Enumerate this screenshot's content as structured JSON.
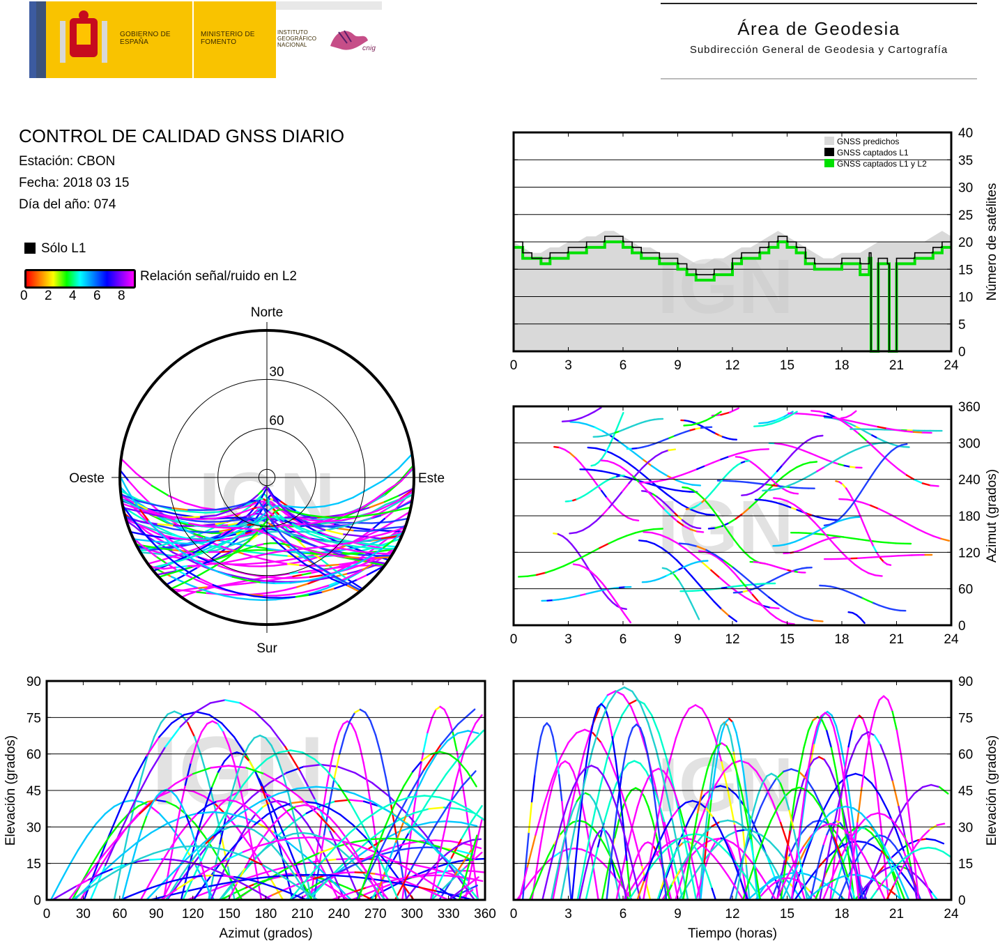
{
  "header": {
    "gov_label": "GOBIERNO DE ESPAÑA",
    "ministry_label": "MINISTERIO DE FOMENTO",
    "institute_label": "INSTITUTO GEOGRÁFICO NACIONAL",
    "cnig_label": "cnig",
    "area_title": "Área de Geodesia",
    "area_subtitle": "Subdirección General de Geodesia y Cartografía"
  },
  "info": {
    "title": "CONTROL DE CALIDAD GNSS DIARIO",
    "station": "Estación: CBON",
    "date": "Fecha: 2018 03 15",
    "doy": "Día del año: 074"
  },
  "legend": {
    "only_l1": "Sólo L1",
    "snr_label": "Relación señal/ruido en L2",
    "snr_ticks": [
      "0",
      "2",
      "4",
      "6",
      "8"
    ],
    "colors": {
      "only_l1": "#000000",
      "snr_gradient": [
        "#ff0000",
        "#ff8000",
        "#ffff00",
        "#00ff00",
        "#00ffff",
        "#0000ff",
        "#ff00ff"
      ]
    }
  },
  "watermark": "IGN",
  "chart_data": [
    {
      "id": "skyplot",
      "type": "scatter",
      "cardinal": {
        "north": "Norte",
        "south": "Sur",
        "east": "Este",
        "west": "Oeste"
      },
      "elevation_ticks": [
        "30",
        "60"
      ],
      "description_values": {
        "elevation_rings_deg": [
          30,
          60
        ],
        "max_elevation_deg": 90
      }
    },
    {
      "id": "satellite-count",
      "type": "line",
      "ylabel": "Número de satélites",
      "xlim": [
        0,
        24
      ],
      "ylim": [
        0,
        40
      ],
      "x_ticks": [
        "0",
        "3",
        "6",
        "9",
        "12",
        "15",
        "18",
        "21",
        "24"
      ],
      "y_ticks": [
        "0",
        "5",
        "10",
        "15",
        "20",
        "25",
        "30",
        "35",
        "40"
      ],
      "legend_position": "top-right",
      "series": [
        {
          "name": "GNSS predichos",
          "color": "#d9d9d9",
          "x": [
            0,
            0.5,
            1,
            1.5,
            2,
            2.5,
            3,
            3.5,
            4,
            4.5,
            5,
            5.5,
            6,
            6.5,
            7,
            7.5,
            8,
            8.5,
            9,
            9.5,
            10,
            10.5,
            11,
            11.5,
            12,
            12.5,
            13,
            13.5,
            14,
            14.5,
            15,
            15.5,
            16,
            16.5,
            17,
            17.5,
            18,
            18.5,
            19,
            19.5,
            20,
            20.5,
            21,
            21.5,
            22,
            22.5,
            23,
            23.5,
            24
          ],
          "values": [
            20,
            19,
            18,
            18,
            19,
            19,
            20,
            20,
            21,
            21,
            22,
            22,
            21,
            20,
            19,
            19,
            18,
            18,
            18,
            17,
            16,
            16,
            17,
            17,
            18,
            19,
            19,
            20,
            21,
            22,
            21,
            20,
            19,
            18,
            17,
            17,
            18,
            18,
            18,
            19,
            20,
            20,
            20,
            20,
            20,
            20,
            21,
            22,
            21
          ]
        },
        {
          "name": "GNSS captados L1",
          "color": "#000000",
          "x": [
            0,
            0.5,
            1,
            1.5,
            2,
            2.5,
            3,
            3.5,
            4,
            4.5,
            5,
            5.5,
            6,
            6.5,
            7,
            7.5,
            8,
            8.5,
            9,
            9.5,
            10,
            10.5,
            11,
            11.5,
            12,
            12.5,
            13,
            13.5,
            14,
            14.5,
            15,
            15.5,
            16,
            16.5,
            17,
            17.5,
            18,
            18.5,
            19,
            19.5,
            19.6,
            20,
            20.5,
            20.6,
            21,
            21.5,
            22,
            22.5,
            23,
            23.5,
            24
          ],
          "values": [
            20,
            18,
            17,
            17,
            18,
            18,
            19,
            19,
            20,
            20,
            21,
            21,
            20,
            19,
            18,
            18,
            17,
            17,
            16,
            15,
            14,
            14,
            15,
            15,
            17,
            18,
            18,
            19,
            20,
            21,
            20,
            19,
            17,
            16,
            16,
            16,
            17,
            17,
            16,
            18,
            0,
            17,
            16,
            0,
            17,
            17,
            18,
            18,
            19,
            20,
            20
          ]
        },
        {
          "name": "GNSS captados L1 y L2",
          "color": "#00e000",
          "x": [
            0,
            0.5,
            1,
            1.5,
            2,
            2.5,
            3,
            3.5,
            4,
            4.5,
            5,
            5.5,
            6,
            6.5,
            7,
            7.5,
            8,
            8.5,
            9,
            9.5,
            10,
            10.5,
            11,
            11.5,
            12,
            12.5,
            13,
            13.5,
            14,
            14.5,
            15,
            15.5,
            16,
            16.5,
            17,
            17.5,
            18,
            18.5,
            19,
            19.5,
            19.6,
            20,
            20.5,
            20.6,
            21,
            21.5,
            22,
            22.5,
            23,
            23.5,
            24
          ],
          "values": [
            19,
            17,
            17,
            16,
            17,
            17,
            18,
            18,
            19,
            19,
            20,
            20,
            19,
            18,
            17,
            17,
            16,
            16,
            15,
            14,
            13,
            13,
            14,
            14,
            16,
            17,
            17,
            18,
            19,
            20,
            19,
            18,
            16,
            15,
            15,
            15,
            16,
            16,
            14,
            17,
            0,
            16,
            16,
            0,
            16,
            16,
            17,
            17,
            18,
            19,
            19
          ]
        }
      ]
    },
    {
      "id": "azimuth-time",
      "type": "scatter",
      "ylabel": "Azimut (grados)",
      "xlim": [
        0,
        24
      ],
      "ylim": [
        0,
        360
      ],
      "x_ticks": [
        "0",
        "3",
        "6",
        "9",
        "12",
        "15",
        "18",
        "21",
        "24"
      ],
      "y_ticks": [
        "0",
        "60",
        "120",
        "180",
        "240",
        "300",
        "360"
      ]
    },
    {
      "id": "elevation-azimuth",
      "type": "scatter",
      "xlabel": "Azimut (grados)",
      "ylabel": "Elevación (grados)",
      "xlim": [
        0,
        360
      ],
      "ylim": [
        0,
        90
      ],
      "x_ticks": [
        "0",
        "30",
        "60",
        "90",
        "120",
        "150",
        "180",
        "210",
        "240",
        "270",
        "300",
        "330",
        "360"
      ],
      "y_ticks": [
        "0",
        "15",
        "30",
        "45",
        "60",
        "75",
        "90"
      ]
    },
    {
      "id": "elevation-time",
      "type": "scatter",
      "xlabel": "Tiempo (horas)",
      "ylabel": "Elevación (grados)",
      "xlim": [
        0,
        24
      ],
      "ylim": [
        0,
        90
      ],
      "x_ticks": [
        "0",
        "3",
        "6",
        "9",
        "12",
        "15",
        "18",
        "21",
        "24"
      ],
      "y_ticks": [
        "0",
        "15",
        "30",
        "45",
        "60",
        "75",
        "90"
      ]
    }
  ]
}
